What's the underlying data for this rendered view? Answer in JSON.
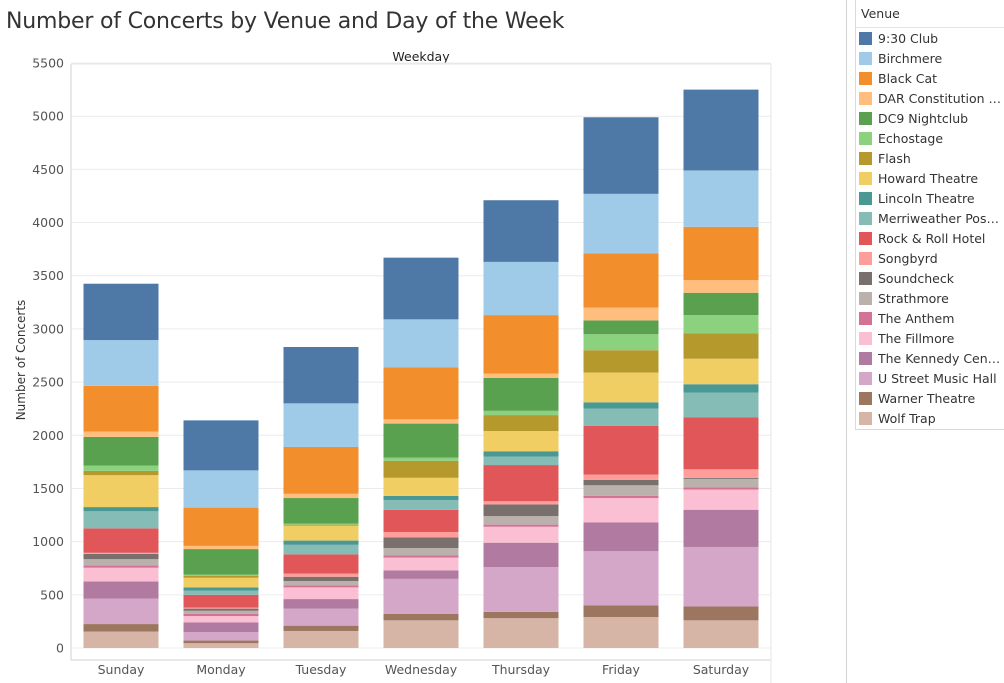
{
  "title": "Number of Concerts by Venue and Day of the Week",
  "legend": {
    "title": "Venue"
  },
  "chart_data": {
    "type": "bar",
    "stacked": true,
    "column_header": "Weekday",
    "ylabel": "Number of Concerts",
    "ylim": [
      0,
      5500
    ],
    "yticks": [
      0,
      500,
      1000,
      1500,
      2000,
      2500,
      3000,
      3500,
      4000,
      4500,
      5000,
      5500
    ],
    "grid": true,
    "legend_position": "right",
    "categories": [
      "Sunday",
      "Monday",
      "Tuesday",
      "Wednesday",
      "Thursday",
      "Friday",
      "Saturday"
    ],
    "series": [
      {
        "name": "Wolf Trap",
        "color": "#d7b5a6",
        "values": [
          155,
          45,
          160,
          260,
          280,
          290,
          260
        ]
      },
      {
        "name": "Warner Theatre",
        "color": "#9d7660",
        "values": [
          70,
          25,
          50,
          60,
          60,
          110,
          130
        ]
      },
      {
        "name": "U Street Music Hall",
        "color": "#d4a6c8",
        "values": [
          240,
          80,
          160,
          330,
          420,
          510,
          560
        ]
      },
      {
        "name": "The Kennedy Center",
        "color": "#b07aa1",
        "values": [
          160,
          90,
          90,
          80,
          230,
          270,
          350
        ]
      },
      {
        "name": "The Fillmore",
        "color": "#fabfd2",
        "values": [
          130,
          60,
          110,
          120,
          150,
          230,
          190
        ]
      },
      {
        "name": "The Anthem",
        "color": "#d37295",
        "values": [
          20,
          20,
          20,
          20,
          20,
          20,
          20
        ]
      },
      {
        "name": "Strathmore",
        "color": "#bab0ac",
        "values": [
          60,
          30,
          40,
          70,
          80,
          100,
          80
        ]
      },
      {
        "name": "Soundcheck",
        "color": "#79706e",
        "values": [
          50,
          20,
          40,
          100,
          110,
          50,
          10
        ]
      },
      {
        "name": "Songbyrd",
        "color": "#ff9d9a",
        "values": [
          10,
          10,
          30,
          50,
          30,
          50,
          80
        ]
      },
      {
        "name": "Rock & Roll Hotel",
        "color": "#e15759",
        "values": [
          230,
          120,
          180,
          210,
          340,
          460,
          490
        ]
      },
      {
        "name": "Merriweather Post Pavilion",
        "color": "#86bcb6",
        "values": [
          160,
          40,
          90,
          90,
          80,
          160,
          230
        ]
      },
      {
        "name": "Lincoln Theatre",
        "color": "#499894",
        "values": [
          40,
          30,
          40,
          40,
          50,
          60,
          80
        ]
      },
      {
        "name": "Howard Theatre",
        "color": "#f1ce63",
        "values": [
          300,
          90,
          140,
          170,
          190,
          280,
          240
        ]
      },
      {
        "name": "Flash",
        "color": "#b6992d",
        "values": [
          40,
          20,
          10,
          160,
          150,
          210,
          240
        ]
      },
      {
        "name": "Echostage",
        "color": "#8cd17d",
        "values": [
          50,
          10,
          10,
          30,
          40,
          150,
          170
        ]
      },
      {
        "name": "DC9 Nightclub",
        "color": "#59a14f",
        "values": [
          270,
          240,
          240,
          320,
          310,
          130,
          210
        ]
      },
      {
        "name": "DAR Constitution Hall",
        "color": "#ffbe7d",
        "values": [
          50,
          30,
          40,
          40,
          40,
          120,
          120
        ]
      },
      {
        "name": "Black Cat",
        "color": "#f28e2b",
        "values": [
          430,
          360,
          440,
          490,
          550,
          510,
          500
        ]
      },
      {
        "name": "Birchmere",
        "color": "#a0cbe8",
        "values": [
          430,
          350,
          410,
          450,
          500,
          560,
          530
        ]
      },
      {
        "name": "9:30 Club",
        "color": "#4e79a7",
        "values": [
          530,
          470,
          530,
          580,
          580,
          720,
          760
        ]
      }
    ]
  },
  "legend_items": [
    {
      "label": "9:30 Club",
      "color": "#4e79a7"
    },
    {
      "label": "Birchmere",
      "color": "#a0cbe8"
    },
    {
      "label": "Black Cat",
      "color": "#f28e2b"
    },
    {
      "label": "DAR Constitution Hall",
      "color": "#ffbe7d"
    },
    {
      "label": "DC9 Nightclub",
      "color": "#59a14f"
    },
    {
      "label": "Echostage",
      "color": "#8cd17d"
    },
    {
      "label": "Flash",
      "color": "#b6992d"
    },
    {
      "label": "Howard Theatre",
      "color": "#f1ce63"
    },
    {
      "label": "Lincoln Theatre",
      "color": "#499894"
    },
    {
      "label": "Merriweather Post Pavilion",
      "color": "#86bcb6"
    },
    {
      "label": "Rock & Roll Hotel",
      "color": "#e15759"
    },
    {
      "label": "Songbyrd",
      "color": "#ff9d9a"
    },
    {
      "label": "Soundcheck",
      "color": "#79706e"
    },
    {
      "label": "Strathmore",
      "color": "#bab0ac"
    },
    {
      "label": "The Anthem",
      "color": "#d37295"
    },
    {
      "label": "The Fillmore",
      "color": "#fabfd2"
    },
    {
      "label": "The Kennedy Center",
      "color": "#b07aa1"
    },
    {
      "label": "U Street Music Hall",
      "color": "#d4a6c8"
    },
    {
      "label": "Warner Theatre",
      "color": "#9d7660"
    },
    {
      "label": "Wolf Trap",
      "color": "#d7b5a6"
    }
  ]
}
